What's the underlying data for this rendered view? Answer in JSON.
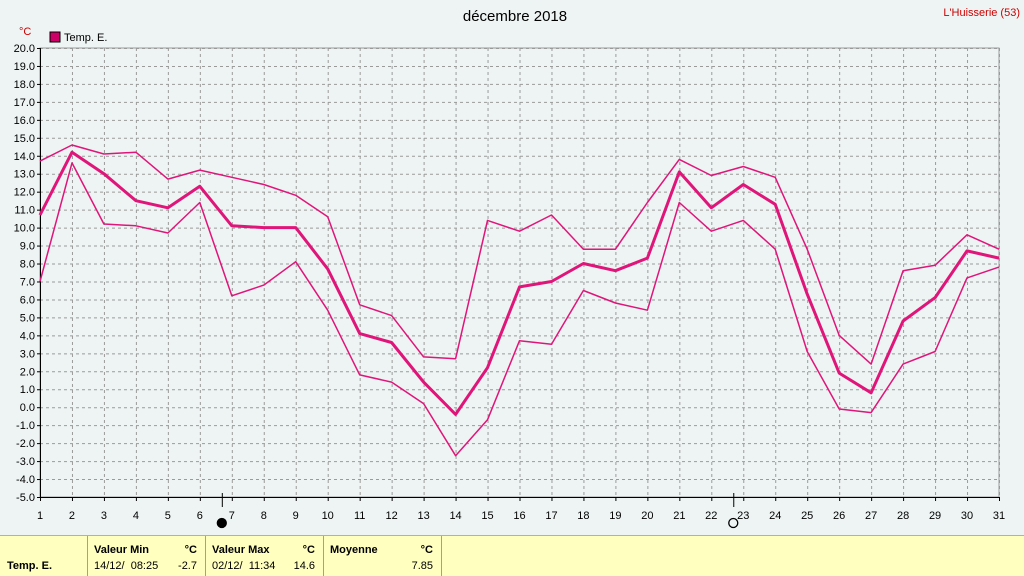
{
  "header": {
    "title": "décembre 2018",
    "station": "L'Huisserie (53)",
    "unit": "°C"
  },
  "legend": {
    "label": "Temp. E.",
    "color": "#cc0066"
  },
  "colors": {
    "series": "#e0157a",
    "grid": "#9a9a9a",
    "axis": "#000000"
  },
  "chart_data": {
    "type": "line",
    "title": "décembre 2018",
    "ylabel": "°C",
    "xlabel": "",
    "ylim": [
      -5.0,
      20.0
    ],
    "y_ticks": [
      "-5.0",
      "-4.0",
      "-3.0",
      "-2.0",
      "-1.0",
      "0.0",
      "1.0",
      "2.0",
      "3.0",
      "4.0",
      "5.0",
      "6.0",
      "7.0",
      "8.0",
      "9.0",
      "10.0",
      "11.0",
      "12.0",
      "13.0",
      "14.0",
      "15.0",
      "16.0",
      "17.0",
      "18.0",
      "19.0",
      "20.0"
    ],
    "x": [
      1,
      2,
      3,
      4,
      5,
      6,
      7,
      8,
      9,
      10,
      11,
      12,
      13,
      14,
      15,
      16,
      17,
      18,
      19,
      20,
      21,
      22,
      23,
      24,
      25,
      26,
      27,
      28,
      29,
      30,
      31
    ],
    "grid": true,
    "legend_position": "top-left",
    "series": [
      {
        "name": "Temp. E.",
        "role": "max",
        "values": [
          13.7,
          14.6,
          14.1,
          14.2,
          12.7,
          13.2,
          12.8,
          12.4,
          11.8,
          10.6,
          5.7,
          5.1,
          2.8,
          2.7,
          10.4,
          9.8,
          10.7,
          8.8,
          8.8,
          11.4,
          13.8,
          12.9,
          13.4,
          12.8,
          8.8,
          4.0,
          2.4,
          7.6,
          7.9,
          9.6,
          8.8
        ],
        "stroke": 1.5
      },
      {
        "name": "Temp. E.",
        "role": "mean",
        "values": [
          10.7,
          14.2,
          13.0,
          11.5,
          11.1,
          12.3,
          10.1,
          10.0,
          10.0,
          7.7,
          4.1,
          3.6,
          1.4,
          -0.4,
          2.2,
          6.7,
          7.0,
          8.0,
          7.6,
          8.3,
          13.1,
          11.1,
          12.4,
          11.3,
          6.3,
          1.9,
          0.8,
          4.8,
          6.1,
          8.7,
          8.3
        ],
        "stroke": 3
      },
      {
        "name": "Temp. E.",
        "role": "min",
        "values": [
          7.0,
          13.6,
          10.2,
          10.1,
          9.7,
          11.4,
          6.2,
          6.8,
          8.1,
          5.4,
          1.8,
          1.4,
          0.2,
          -2.7,
          -0.7,
          3.7,
          3.5,
          6.5,
          5.8,
          5.4,
          11.4,
          9.8,
          10.4,
          8.8,
          3.1,
          -0.1,
          -0.3,
          2.4,
          3.1,
          7.2,
          7.8
        ],
        "stroke": 1.5
      }
    ],
    "moon_phases": [
      {
        "day": 7,
        "phase": "new"
      },
      {
        "day": 23,
        "phase": "full"
      }
    ]
  },
  "footer": {
    "row_label": "Temp. E.",
    "min_header": "Valeur Min",
    "min_unit": "°C",
    "min_date": "14/12/  08:25",
    "min_value": "-2.7",
    "max_header": "Valeur Max",
    "max_unit": "°C",
    "max_date": "02/12/  11:34",
    "max_value": "14.6",
    "mean_header": "Moyenne",
    "mean_unit": "°C",
    "mean_value": "7.85"
  }
}
